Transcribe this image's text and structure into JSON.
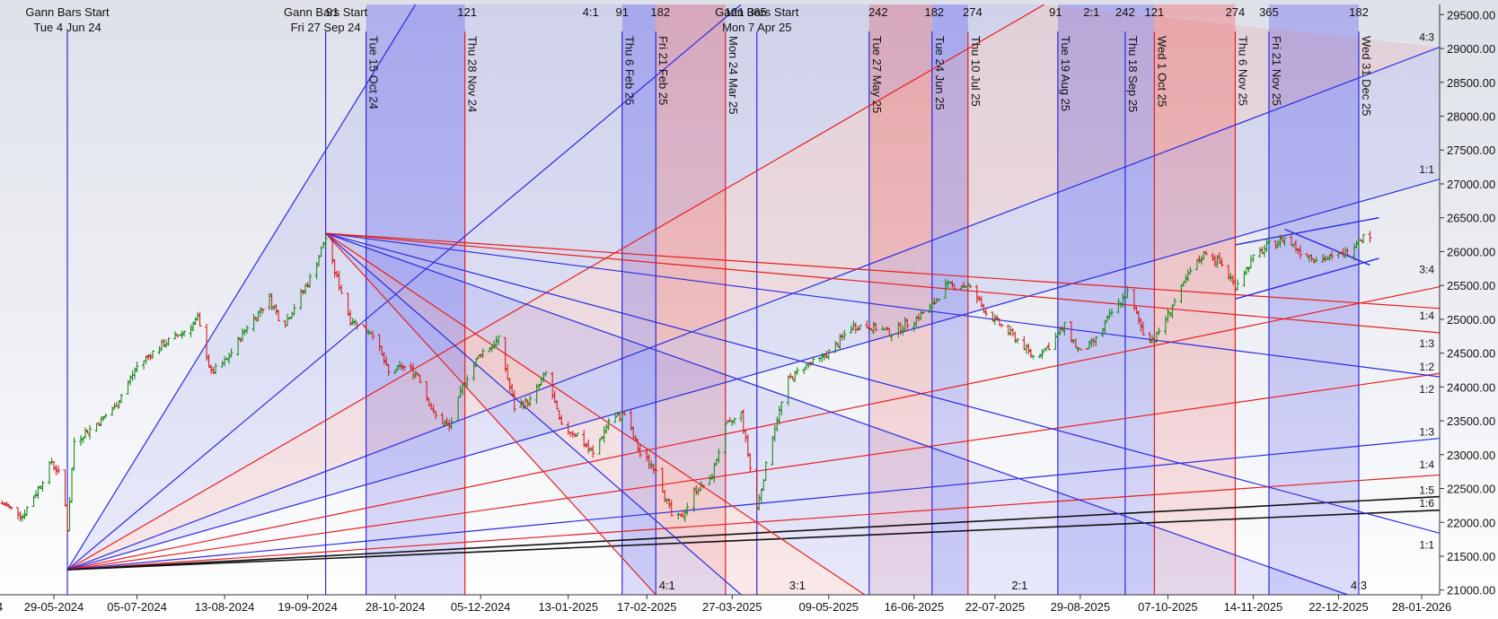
{
  "chart_data": {
    "type": "candlestick",
    "y_axis": {
      "ticks": [
        "29500.00",
        "29000.00",
        "28500.00",
        "28000.00",
        "27500.00",
        "27000.00",
        "26500.00",
        "26000.00",
        "25500.00",
        "25000.00",
        "24500.00",
        "24000.00",
        "23500.00",
        "23000.00",
        "22500.00",
        "22000.00",
        "21500.00",
        "21000.00"
      ],
      "range": [
        20930,
        29650
      ],
      "position": "right"
    },
    "x_axis": {
      "range_start": "2024-05-05",
      "range_end": "2026-02-05",
      "ticks": [
        {
          "label": "29-05-2024",
          "date": "2024-05-29"
        },
        {
          "label": "05-07-2024",
          "date": "2024-07-05"
        },
        {
          "label": "13-08-2024",
          "date": "2024-08-13"
        },
        {
          "label": "19-09-2024",
          "date": "2024-09-19"
        },
        {
          "label": "28-10-2024",
          "date": "2024-10-28"
        },
        {
          "label": "05-12-2024",
          "date": "2024-12-05"
        },
        {
          "label": "13-01-2025",
          "date": "2025-01-13"
        },
        {
          "label": "17-02-2025",
          "date": "2025-02-17"
        },
        {
          "label": "27-03-2025",
          "date": "2025-03-27"
        },
        {
          "label": "09-05-2025",
          "date": "2025-05-09"
        },
        {
          "label": "16-06-2025",
          "date": "2025-06-16"
        },
        {
          "label": "22-07-2025",
          "date": "2025-07-22"
        },
        {
          "label": "29-08-2025",
          "date": "2025-08-29"
        },
        {
          "label": "07-10-2025",
          "date": "2025-10-07"
        },
        {
          "label": "14-11-2025",
          "date": "2025-11-14"
        },
        {
          "label": "22-12-2025",
          "date": "2025-12-22"
        },
        {
          "label": "28-01-2026",
          "date": "2026-01-28"
        }
      ]
    },
    "gann_starts": [
      {
        "line1": "Gann Bars Start",
        "line2": "Tue 4 Jun 24",
        "date": "2024-06-04"
      },
      {
        "line1": "Gann Bars Start",
        "line2": "Fri 27 Sep 24",
        "date": "2024-09-27"
      },
      {
        "line1": "Gann Bars Start",
        "line2": "Mon 7 Apr 25",
        "date": "2025-04-07"
      }
    ],
    "vertical_lines": [
      {
        "label": "Tue 15 Oct 24",
        "date": "2024-10-15",
        "color": "blue"
      },
      {
        "label": "Thu 28 Nov 24",
        "date": "2024-11-28",
        "color": "red"
      },
      {
        "label": "Thu 6 Feb 25",
        "date": "2025-02-06",
        "color": "blue"
      },
      {
        "label": "Fri 21 Feb 25",
        "date": "2025-02-21",
        "color": "blue"
      },
      {
        "label": "Mon 24 Mar 25",
        "date": "2025-03-24",
        "color": "red"
      },
      {
        "label": "Tue 27 May 25",
        "date": "2025-05-27",
        "color": "blue"
      },
      {
        "label": "Tue 24 Jun 25",
        "date": "2025-06-24",
        "color": "blue"
      },
      {
        "label": "Thu 10 Jul 25",
        "date": "2025-07-10",
        "color": "red"
      },
      {
        "label": "Tue 19 Aug 25",
        "date": "2025-08-19",
        "color": "blue"
      },
      {
        "label": "Thu 18 Sep 25",
        "date": "2025-09-18",
        "color": "blue"
      },
      {
        "label": "Wed 1 Oct 25",
        "date": "2025-10-01",
        "color": "red"
      },
      {
        "label": "Thu 6 Nov 25",
        "date": "2025-11-06",
        "color": "red"
      },
      {
        "label": "Fri 21 Nov 25",
        "date": "2025-11-21",
        "color": "blue"
      },
      {
        "label": "Wed 31 Dec 25",
        "date": "2025-12-31",
        "color": "blue"
      }
    ],
    "shaded_bands": [
      {
        "from": "2024-10-15",
        "to": "2024-11-28",
        "color": "blue"
      },
      {
        "from": "2025-02-06",
        "to": "2025-02-21",
        "color": "blue"
      },
      {
        "from": "2025-02-21",
        "to": "2025-03-24",
        "color": "red"
      },
      {
        "from": "2025-05-27",
        "to": "2025-06-24",
        "color": "red"
      },
      {
        "from": "2025-06-24",
        "to": "2025-07-10",
        "color": "blue"
      },
      {
        "from": "2025-08-19",
        "to": "2025-09-18",
        "color": "blue"
      },
      {
        "from": "2025-09-18",
        "to": "2025-10-01",
        "color": "blue"
      },
      {
        "from": "2025-10-01",
        "to": "2025-11-06",
        "color": "red"
      },
      {
        "from": "2025-11-21",
        "to": "2025-12-31",
        "color": "blue"
      }
    ],
    "top_counts": [
      {
        "text": "91",
        "date": "2024-09-30"
      },
      {
        "text": "121",
        "date": "2024-11-29"
      },
      {
        "text": "4:1",
        "date": "2025-01-23"
      },
      {
        "text": "91",
        "date": "2025-02-06"
      },
      {
        "text": "182",
        "date": "2025-02-23"
      },
      {
        "text": "121",
        "date": "2025-03-28"
      },
      {
        "text": "365",
        "date": "2025-04-07"
      },
      {
        "text": "242",
        "date": "2025-05-31"
      },
      {
        "text": "182",
        "date": "2025-06-25"
      },
      {
        "text": "274",
        "date": "2025-07-12"
      },
      {
        "text": "91",
        "date": "2025-08-18"
      },
      {
        "text": "2:1",
        "date": "2025-09-03"
      },
      {
        "text": "242",
        "date": "2025-09-18"
      },
      {
        "text": "121",
        "date": "2025-10-01"
      },
      {
        "text": "274",
        "date": "2025-11-06"
      },
      {
        "text": "365",
        "date": "2025-11-21"
      },
      {
        "text": "182",
        "date": "2025-12-31"
      }
    ],
    "bottom_labels": [
      {
        "text": "4:1",
        "date": "2025-02-26"
      },
      {
        "text": "3:1",
        "date": "2025-04-25"
      },
      {
        "text": "2:1",
        "date": "2025-08-02"
      },
      {
        "text": "4:3",
        "date": "2025-12-31"
      }
    ],
    "right_labels": [
      {
        "text": "4:3",
        "price": 29110
      },
      {
        "text": "1:1",
        "price": 27160
      },
      {
        "text": "3:4",
        "price": 25680
      },
      {
        "text": "1:4",
        "price": 25000
      },
      {
        "text": "1:3",
        "price": 24590
      },
      {
        "text": "1:2",
        "price": 24240
      },
      {
        "text": "1:2",
        "price": 23910
      },
      {
        "text": "1:3",
        "price": 23280
      },
      {
        "text": "1:4",
        "price": 22800
      },
      {
        "text": "1:5",
        "price": 22420
      },
      {
        "text": "1:6",
        "price": 22230
      },
      {
        "text": "1:1",
        "price": 21610
      }
    ],
    "fans": [
      {
        "origin": {
          "date": "2024-06-04",
          "price": 21300
        },
        "lines": [
          {
            "to_date": "2024-11-06",
            "to_price": 29650,
            "color": "blue"
          },
          {
            "to_date": "2025-03-31",
            "to_price": 29650,
            "color": "blue"
          },
          {
            "to_date": "2025-08-13",
            "to_price": 29650,
            "color": "red"
          },
          {
            "to_date": "2026-02-05",
            "to_price": 29020,
            "color": "blue"
          },
          {
            "to_date": "2026-02-05",
            "to_price": 27070,
            "color": "blue"
          },
          {
            "to_date": "2026-02-05",
            "to_price": 25480,
            "color": "red"
          },
          {
            "to_date": "2026-02-05",
            "to_price": 24200,
            "color": "red"
          },
          {
            "to_date": "2026-02-05",
            "to_price": 23240,
            "color": "blue"
          },
          {
            "to_date": "2026-02-05",
            "to_price": 22700,
            "color": "red"
          },
          {
            "to_date": "2026-02-05",
            "to_price": 22380,
            "color": "black"
          },
          {
            "to_date": "2026-02-05",
            "to_price": 22180,
            "color": "black"
          }
        ]
      },
      {
        "origin": {
          "date": "2024-09-27",
          "price": 26270
        },
        "lines": [
          {
            "to_date": "2025-02-21",
            "to_price": 20930,
            "color": "red"
          },
          {
            "to_date": "2025-03-31",
            "to_price": 20930,
            "color": "blue"
          },
          {
            "to_date": "2025-05-25",
            "to_price": 20930,
            "color": "red"
          },
          {
            "to_date": "2025-12-26",
            "to_price": 20930,
            "color": "blue"
          },
          {
            "to_date": "2026-02-05",
            "to_price": 21840,
            "color": "blue"
          },
          {
            "to_date": "2026-02-05",
            "to_price": 24150,
            "color": "blue"
          },
          {
            "to_date": "2026-02-05",
            "to_price": 24800,
            "color": "red"
          },
          {
            "to_date": "2026-02-05",
            "to_price": 25160,
            "color": "red"
          }
        ]
      }
    ],
    "channel": [
      {
        "from_date": "2025-11-06",
        "from_price": 25300,
        "to_date": "2026-01-09",
        "to_price": 25900,
        "color": "blue"
      },
      {
        "from_date": "2025-11-06",
        "from_price": 26100,
        "to_date": "2026-01-09",
        "to_price": 26500,
        "color": "blue"
      },
      {
        "from_date": "2025-11-28",
        "from_price": 26330,
        "to_date": "2026-01-05",
        "to_price": 25800,
        "color": "blue"
      }
    ],
    "candle_anchors": [
      [
        "2024-05-05",
        22300
      ],
      [
        "2024-05-15",
        22100
      ],
      [
        "2024-05-22",
        22500
      ],
      [
        "2024-05-28",
        22900
      ],
      [
        "2024-06-02",
        22600
      ],
      [
        "2024-06-04",
        21900
      ],
      [
        "2024-06-07",
        23200
      ],
      [
        "2024-06-15",
        23400
      ],
      [
        "2024-06-25",
        23700
      ],
      [
        "2024-07-05",
        24300
      ],
      [
        "2024-07-15",
        24600
      ],
      [
        "2024-07-25",
        24800
      ],
      [
        "2024-08-01",
        25000
      ],
      [
        "2024-08-07",
        24200
      ],
      [
        "2024-08-14",
        24400
      ],
      [
        "2024-08-23",
        24900
      ],
      [
        "2024-09-02",
        25300
      ],
      [
        "2024-09-08",
        24900
      ],
      [
        "2024-09-15",
        25300
      ],
      [
        "2024-09-20",
        25600
      ],
      [
        "2024-09-27",
        26200
      ],
      [
        "2024-10-01",
        25700
      ],
      [
        "2024-10-08",
        25000
      ],
      [
        "2024-10-18",
        24800
      ],
      [
        "2024-10-25",
        24200
      ],
      [
        "2024-10-31",
        24300
      ],
      [
        "2024-11-07",
        24200
      ],
      [
        "2024-11-14",
        23600
      ],
      [
        "2024-11-21",
        23400
      ],
      [
        "2024-11-28",
        24100
      ],
      [
        "2024-12-05",
        24500
      ],
      [
        "2024-12-13",
        24700
      ],
      [
        "2024-12-20",
        23700
      ],
      [
        "2024-12-27",
        23800
      ],
      [
        "2025-01-03",
        24200
      ],
      [
        "2025-01-10",
        23400
      ],
      [
        "2025-01-17",
        23300
      ],
      [
        "2025-01-24",
        23000
      ],
      [
        "2025-01-31",
        23500
      ],
      [
        "2025-02-07",
        23600
      ],
      [
        "2025-02-14",
        23000
      ],
      [
        "2025-02-21",
        22800
      ],
      [
        "2025-02-28",
        22100
      ],
      [
        "2025-03-04",
        22050
      ],
      [
        "2025-03-11",
        22500
      ],
      [
        "2025-03-17",
        22600
      ],
      [
        "2025-03-24",
        23400
      ],
      [
        "2025-03-31",
        23600
      ],
      [
        "2025-04-04",
        22800
      ],
      [
        "2025-04-07",
        22200
      ],
      [
        "2025-04-14",
        23300
      ],
      [
        "2025-04-21",
        24100
      ],
      [
        "2025-04-28",
        24300
      ],
      [
        "2025-05-05",
        24400
      ],
      [
        "2025-05-12",
        24600
      ],
      [
        "2025-05-19",
        24900
      ],
      [
        "2025-05-27",
        24900
      ],
      [
        "2025-06-06",
        24800
      ],
      [
        "2025-06-16",
        25000
      ],
      [
        "2025-06-24",
        25200
      ],
      [
        "2025-06-30",
        25500
      ],
      [
        "2025-07-10",
        25500
      ],
      [
        "2025-07-18",
        25100
      ],
      [
        "2025-07-25",
        24900
      ],
      [
        "2025-08-01",
        24700
      ],
      [
        "2025-08-08",
        24450
      ],
      [
        "2025-08-15",
        24600
      ],
      [
        "2025-08-22",
        24900
      ],
      [
        "2025-08-29",
        24500
      ],
      [
        "2025-09-05",
        24700
      ],
      [
        "2025-09-12",
        25100
      ],
      [
        "2025-09-19",
        25400
      ],
      [
        "2025-09-26",
        24800
      ],
      [
        "2025-10-01",
        24700
      ],
      [
        "2025-10-09",
        25200
      ],
      [
        "2025-10-17",
        25700
      ],
      [
        "2025-10-24",
        26000
      ],
      [
        "2025-10-31",
        25800
      ],
      [
        "2025-11-06",
        25500
      ],
      [
        "2025-11-14",
        25900
      ],
      [
        "2025-11-21",
        26100
      ],
      [
        "2025-11-28",
        26200
      ],
      [
        "2025-12-05",
        26000
      ],
      [
        "2025-12-12",
        25900
      ],
      [
        "2025-12-19",
        25900
      ],
      [
        "2025-12-26",
        26000
      ],
      [
        "2025-12-31",
        26200
      ],
      [
        "2026-01-05",
        26250
      ]
    ]
  }
}
